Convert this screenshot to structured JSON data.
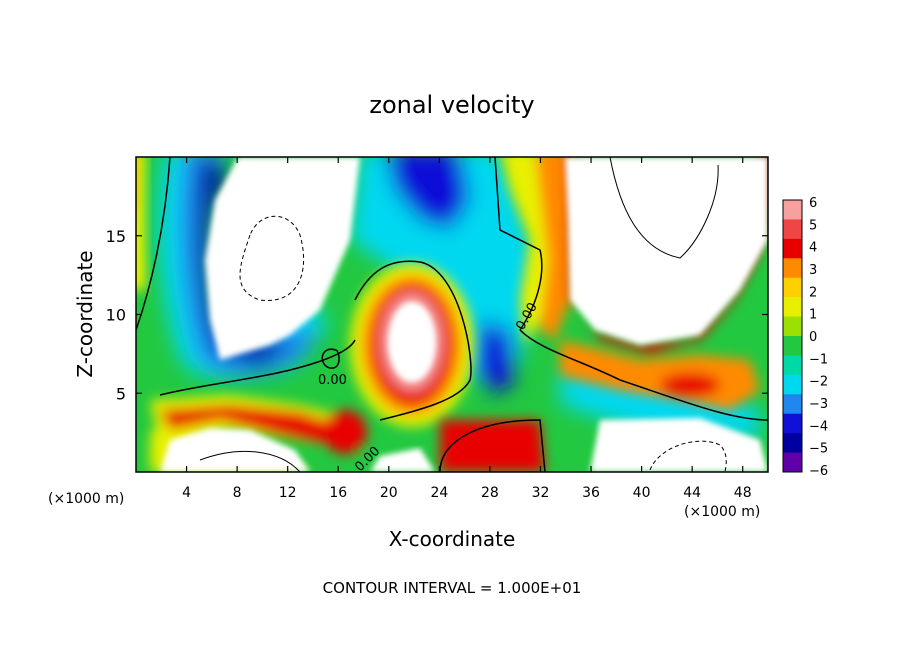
{
  "chart_data": {
    "type": "heatmap",
    "title": "zonal velocity",
    "xlabel": "X-coordinate",
    "ylabel": "Z-coordinate",
    "x_unit": "(×1000 m)",
    "x_unit_right": "(×1000 m)",
    "xlim": [
      0,
      50
    ],
    "ylim": [
      0,
      20
    ],
    "xticks": [
      "4",
      "8",
      "12",
      "16",
      "20",
      "24",
      "28",
      "32",
      "36",
      "40",
      "44",
      "48"
    ],
    "yticks": [
      "5",
      "10",
      "15"
    ],
    "colorbar": {
      "labels": [
        "6",
        "5",
        "4",
        "3",
        "2",
        "1",
        "0",
        "−1",
        "−2",
        "−3",
        "−4",
        "−5",
        "−6"
      ],
      "colors": [
        "#f7a0a0",
        "#f04545",
        "#e80000",
        "#ff8a00",
        "#ffd000",
        "#e8f000",
        "#9be000",
        "#22c840",
        "#00d8a8",
        "#00d8f0",
        "#1e88f0",
        "#1010d8",
        "#0000a0",
        "#6000a8"
      ]
    },
    "contour_labels": [
      "0.00",
      "0.00",
      "0.00"
    ],
    "footer": "CONTOUR INTERVAL = 1.000E+01",
    "palette": {
      "6": "#f7a0a0",
      "5": "#f04545",
      "4": "#e80000",
      "3": "#ff8a00",
      "2": "#ffd000",
      "1": "#c8ec00",
      "0": "#22c840",
      "-1": "#00d8a8",
      "-2": "#00d8f0",
      "-3": "#1e88f0",
      "-4": "#1010d8",
      "-5": "#0000a0",
      "-6": "#6000a8"
    }
  }
}
